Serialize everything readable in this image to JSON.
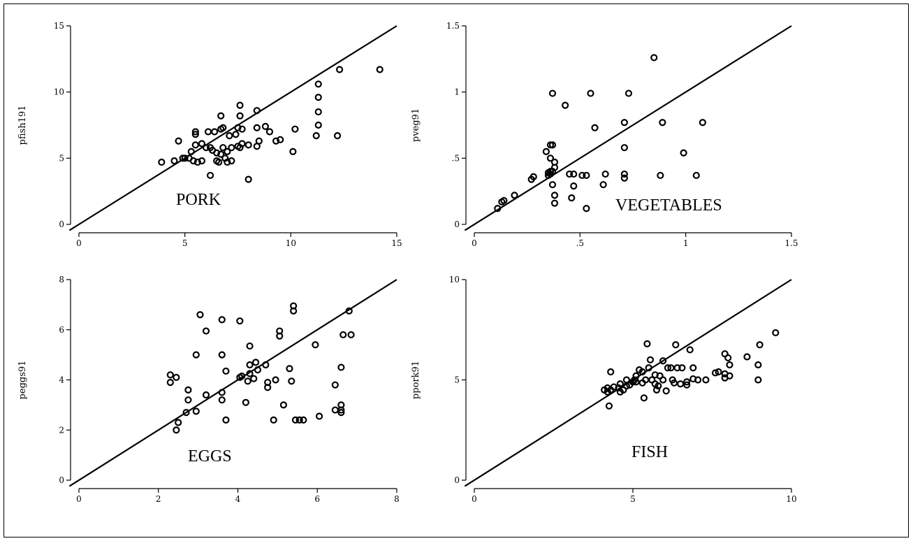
{
  "chart_data": [
    {
      "type": "scatter",
      "title": "",
      "annotation": "PORK",
      "xlabel": "",
      "ylabel": "pfish191",
      "xlim": [
        0,
        15
      ],
      "ylim": [
        0,
        15
      ],
      "xticks": [
        "0",
        "5",
        "10",
        "15"
      ],
      "yticks": [
        "0",
        "5",
        "10",
        "15"
      ],
      "reference_line": "y = x",
      "points": [
        [
          3.9,
          4.7
        ],
        [
          4.5,
          4.8
        ],
        [
          4.7,
          6.3
        ],
        [
          4.9,
          5.0
        ],
        [
          5.0,
          5.0
        ],
        [
          5.2,
          5.0
        ],
        [
          5.3,
          5.5
        ],
        [
          5.4,
          4.8
        ],
        [
          5.5,
          6.0
        ],
        [
          5.5,
          6.8
        ],
        [
          5.5,
          7.0
        ],
        [
          5.6,
          4.7
        ],
        [
          5.8,
          4.8
        ],
        [
          5.8,
          6.1
        ],
        [
          6.0,
          5.8
        ],
        [
          6.1,
          7.0
        ],
        [
          6.2,
          3.7
        ],
        [
          6.2,
          5.8
        ],
        [
          6.3,
          5.6
        ],
        [
          6.4,
          7.0
        ],
        [
          6.5,
          4.8
        ],
        [
          6.5,
          5.4
        ],
        [
          6.6,
          4.7
        ],
        [
          6.7,
          5.3
        ],
        [
          6.7,
          7.2
        ],
        [
          6.7,
          8.2
        ],
        [
          6.8,
          5.8
        ],
        [
          6.8,
          7.3
        ],
        [
          6.9,
          5.0
        ],
        [
          7.0,
          5.5
        ],
        [
          7.0,
          4.7
        ],
        [
          7.1,
          6.7
        ],
        [
          7.2,
          5.8
        ],
        [
          7.2,
          4.8
        ],
        [
          7.4,
          6.8
        ],
        [
          7.5,
          5.9
        ],
        [
          7.5,
          7.3
        ],
        [
          7.6,
          8.2
        ],
        [
          7.6,
          9.0
        ],
        [
          7.6,
          5.8
        ],
        [
          7.7,
          7.2
        ],
        [
          7.7,
          6.1
        ],
        [
          8.0,
          6.0
        ],
        [
          8.0,
          3.4
        ],
        [
          8.4,
          5.9
        ],
        [
          8.4,
          7.3
        ],
        [
          8.4,
          8.6
        ],
        [
          8.5,
          6.3
        ],
        [
          8.8,
          7.4
        ],
        [
          9.0,
          7.0
        ],
        [
          9.3,
          6.3
        ],
        [
          9.5,
          6.4
        ],
        [
          10.1,
          5.5
        ],
        [
          10.2,
          7.2
        ],
        [
          11.2,
          6.7
        ],
        [
          11.3,
          7.5
        ],
        [
          11.3,
          8.5
        ],
        [
          11.3,
          9.6
        ],
        [
          11.3,
          10.6
        ],
        [
          12.2,
          6.7
        ],
        [
          12.3,
          11.7
        ],
        [
          14.2,
          11.7
        ]
      ]
    },
    {
      "type": "scatter",
      "title": "",
      "annotation": "VEGETABLES",
      "xlabel": "",
      "ylabel": "pveg91",
      "xlim": [
        0,
        1.5
      ],
      "ylim": [
        0,
        1.5
      ],
      "xticks": [
        "0",
        ".5",
        "1",
        "1.5"
      ],
      "yticks": [
        "0",
        ".5",
        "1",
        "1.5"
      ],
      "reference_line": "y = x",
      "points": [
        [
          0.11,
          0.12
        ],
        [
          0.13,
          0.17
        ],
        [
          0.14,
          0.18
        ],
        [
          0.19,
          0.22
        ],
        [
          0.27,
          0.34
        ],
        [
          0.28,
          0.36
        ],
        [
          0.34,
          0.55
        ],
        [
          0.35,
          0.37
        ],
        [
          0.35,
          0.39
        ],
        [
          0.36,
          0.38
        ],
        [
          0.36,
          0.4
        ],
        [
          0.36,
          0.5
        ],
        [
          0.36,
          0.6
        ],
        [
          0.37,
          0.6
        ],
        [
          0.37,
          0.4
        ],
        [
          0.37,
          0.99
        ],
        [
          0.37,
          0.3
        ],
        [
          0.38,
          0.16
        ],
        [
          0.38,
          0.22
        ],
        [
          0.38,
          0.43
        ],
        [
          0.38,
          0.47
        ],
        [
          0.43,
          0.9
        ],
        [
          0.45,
          0.38
        ],
        [
          0.46,
          0.2
        ],
        [
          0.47,
          0.29
        ],
        [
          0.47,
          0.38
        ],
        [
          0.51,
          0.37
        ],
        [
          0.53,
          0.12
        ],
        [
          0.53,
          0.37
        ],
        [
          0.55,
          0.99
        ],
        [
          0.57,
          0.73
        ],
        [
          0.61,
          0.3
        ],
        [
          0.62,
          0.38
        ],
        [
          0.71,
          0.77
        ],
        [
          0.71,
          0.58
        ],
        [
          0.71,
          0.38
        ],
        [
          0.71,
          0.35
        ],
        [
          0.73,
          0.99
        ],
        [
          0.85,
          1.26
        ],
        [
          0.88,
          0.37
        ],
        [
          0.89,
          0.77
        ],
        [
          0.99,
          0.54
        ],
        [
          1.05,
          0.37
        ],
        [
          1.08,
          0.77
        ]
      ]
    },
    {
      "type": "scatter",
      "title": "",
      "annotation": "EGGS",
      "xlabel": "",
      "ylabel": "peggs91",
      "xlim": [
        0,
        8
      ],
      "ylim": [
        0,
        8
      ],
      "xticks": [
        "0",
        "2",
        "4",
        "6",
        "8"
      ],
      "yticks": [
        "0",
        "2",
        "4",
        "6",
        "8"
      ],
      "reference_line": "y = x",
      "points": [
        [
          2.3,
          3.9
        ],
        [
          2.3,
          4.2
        ],
        [
          2.45,
          4.1
        ],
        [
          2.45,
          2.0
        ],
        [
          2.5,
          2.3
        ],
        [
          2.7,
          2.7
        ],
        [
          2.75,
          3.2
        ],
        [
          2.75,
          3.6
        ],
        [
          2.95,
          2.75
        ],
        [
          2.95,
          5.0
        ],
        [
          3.05,
          6.6
        ],
        [
          3.2,
          5.95
        ],
        [
          3.2,
          3.4
        ],
        [
          3.6,
          3.5
        ],
        [
          3.6,
          3.2
        ],
        [
          3.6,
          5.0
        ],
        [
          3.6,
          6.4
        ],
        [
          3.7,
          2.4
        ],
        [
          3.7,
          4.35
        ],
        [
          4.05,
          6.35
        ],
        [
          4.05,
          4.1
        ],
        [
          4.1,
          4.15
        ],
        [
          4.2,
          3.1
        ],
        [
          4.25,
          3.95
        ],
        [
          4.3,
          4.6
        ],
        [
          4.3,
          5.35
        ],
        [
          4.3,
          4.25
        ],
        [
          4.4,
          4.05
        ],
        [
          4.45,
          4.7
        ],
        [
          4.5,
          4.4
        ],
        [
          4.7,
          4.6
        ],
        [
          4.75,
          3.9
        ],
        [
          4.75,
          3.7
        ],
        [
          4.9,
          2.4
        ],
        [
          4.95,
          4.0
        ],
        [
          5.05,
          5.95
        ],
        [
          5.05,
          5.75
        ],
        [
          5.15,
          3.0
        ],
        [
          5.3,
          4.45
        ],
        [
          5.35,
          3.95
        ],
        [
          5.4,
          6.95
        ],
        [
          5.4,
          6.75
        ],
        [
          5.45,
          2.4
        ],
        [
          5.55,
          2.4
        ],
        [
          5.65,
          2.4
        ],
        [
          5.95,
          5.4
        ],
        [
          6.05,
          2.55
        ],
        [
          6.45,
          2.8
        ],
        [
          6.45,
          3.8
        ],
        [
          6.6,
          2.7
        ],
        [
          6.6,
          2.8
        ],
        [
          6.6,
          3.0
        ],
        [
          6.6,
          4.5
        ],
        [
          6.65,
          5.8
        ],
        [
          6.8,
          6.75
        ],
        [
          6.85,
          5.8
        ]
      ]
    },
    {
      "type": "scatter",
      "title": "",
      "annotation": "FISH",
      "xlabel": "",
      "ylabel": "ppork91",
      "xlim": [
        0,
        10
      ],
      "ylim": [
        0,
        10
      ],
      "xticks": [
        "0",
        "5",
        "10"
      ],
      "yticks": [
        "0",
        "5",
        "10"
      ],
      "reference_line": "y = x",
      "points": [
        [
          4.1,
          4.5
        ],
        [
          4.2,
          4.4
        ],
        [
          4.2,
          4.6
        ],
        [
          4.25,
          3.7
        ],
        [
          4.3,
          4.5
        ],
        [
          4.3,
          5.4
        ],
        [
          4.4,
          4.65
        ],
        [
          4.55,
          4.6
        ],
        [
          4.6,
          4.8
        ],
        [
          4.6,
          4.4
        ],
        [
          4.7,
          4.5
        ],
        [
          4.8,
          4.7
        ],
        [
          4.8,
          5.0
        ],
        [
          4.9,
          4.75
        ],
        [
          5.0,
          4.9
        ],
        [
          5.05,
          5.0
        ],
        [
          5.1,
          5.2
        ],
        [
          5.1,
          4.9
        ],
        [
          5.2,
          5.5
        ],
        [
          5.3,
          5.4
        ],
        [
          5.3,
          4.85
        ],
        [
          5.35,
          4.1
        ],
        [
          5.4,
          5.0
        ],
        [
          5.45,
          6.8
        ],
        [
          5.5,
          5.6
        ],
        [
          5.55,
          6.0
        ],
        [
          5.6,
          5.0
        ],
        [
          5.7,
          5.25
        ],
        [
          5.7,
          4.8
        ],
        [
          5.75,
          4.5
        ],
        [
          5.8,
          4.7
        ],
        [
          5.85,
          5.2
        ],
        [
          5.95,
          5.95
        ],
        [
          5.95,
          5.0
        ],
        [
          6.05,
          4.45
        ],
        [
          6.1,
          5.6
        ],
        [
          6.2,
          5.6
        ],
        [
          6.25,
          5.0
        ],
        [
          6.3,
          4.85
        ],
        [
          6.35,
          6.75
        ],
        [
          6.4,
          5.6
        ],
        [
          6.5,
          4.8
        ],
        [
          6.55,
          5.6
        ],
        [
          6.7,
          4.75
        ],
        [
          6.7,
          4.9
        ],
        [
          6.8,
          6.5
        ],
        [
          6.9,
          5.05
        ],
        [
          6.9,
          5.6
        ],
        [
          7.05,
          5.0
        ],
        [
          7.3,
          5.0
        ],
        [
          7.6,
          5.35
        ],
        [
          7.7,
          5.4
        ],
        [
          7.9,
          6.3
        ],
        [
          7.9,
          5.1
        ],
        [
          7.9,
          5.3
        ],
        [
          8.0,
          6.1
        ],
        [
          8.05,
          5.75
        ],
        [
          8.05,
          5.2
        ],
        [
          8.6,
          6.15
        ],
        [
          8.95,
          5.0
        ],
        [
          8.95,
          5.75
        ],
        [
          9.0,
          6.75
        ],
        [
          9.5,
          7.35
        ]
      ]
    }
  ]
}
